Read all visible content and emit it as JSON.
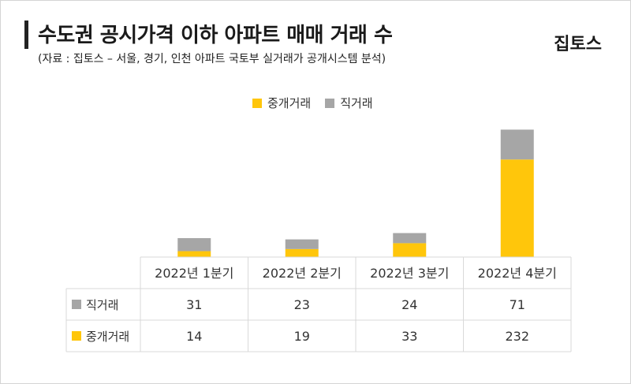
{
  "header": {
    "title": "수도권 공시가격 이하 아파트 매매 거래 수",
    "subtitle": "(자료 : 집토스 – 서울, 경기, 인천 아파트 국토부 실거래가 공개시스템 분석)",
    "logo": "집토스"
  },
  "colors": {
    "brokered": "#FFC60B",
    "direct": "#A6A6A6",
    "grid": "#D9D9D9"
  },
  "chart_data": {
    "type": "bar",
    "stacked": true,
    "categories": [
      "2022년 1분기",
      "2022년 2분기",
      "2022년 3분기",
      "2022년 4분기"
    ],
    "series": [
      {
        "name": "중개거래",
        "values": [
          14,
          19,
          33,
          232
        ],
        "color": "#FFC60B"
      },
      {
        "name": "직거래",
        "values": [
          31,
          23,
          24,
          71
        ],
        "color": "#A6A6A6"
      }
    ],
    "legend": [
      "중개거래",
      "직거래"
    ],
    "legend_position": "top",
    "data_table": true,
    "table_rows": [
      {
        "label": "직거래",
        "values": [
          31,
          23,
          24,
          71
        ]
      },
      {
        "label": "중개거래",
        "values": [
          14,
          19,
          33,
          232
        ]
      }
    ],
    "ylim": [
      0,
      330
    ],
    "grid": false
  }
}
